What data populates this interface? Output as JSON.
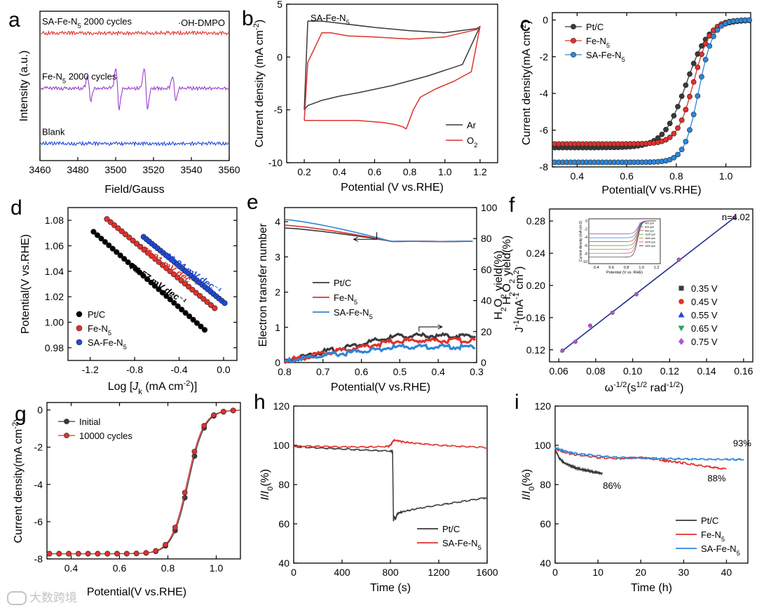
{
  "watermark": "大数跨境",
  "colors": {
    "black": "#3a3a3a",
    "red": "#e0312c",
    "blue": "#1f49d8",
    "purple": "#9b3dc9",
    "lightblue": "#2f86d6",
    "green": "#2ca25f",
    "violet": "#b44fd8"
  },
  "chart_data": [
    {
      "id": "a",
      "letter": "a",
      "type": "line",
      "xlabel": "Field/Gauss",
      "ylabel": "Intensity (a.u.)",
      "xlim": [
        3460,
        3560
      ],
      "xticks": [
        "3460",
        "3480",
        "3500",
        "3520",
        "3540",
        "3560"
      ],
      "annotation": "·OH-DMPO",
      "series": [
        {
          "name": "SA-Fe-N5 2000 cycles",
          "label_main": "SA-Fe-N",
          "label_sub": "5",
          "label_tail": " 2000 cycles",
          "color": "#e0312c",
          "baseline": 0.86,
          "peaks": []
        },
        {
          "name": "Fe-N5 2000 cycles",
          "label_main": "Fe-N",
          "label_sub": "5",
          "label_tail": " 2000 cycles",
          "color": "#9b3dc9",
          "baseline": 0.49,
          "peaks": [
            3486,
            3501,
            3516,
            3531
          ],
          "peak_amp": [
            0.6,
            1.0,
            1.0,
            0.6
          ]
        },
        {
          "name": "Blank",
          "label_main": "Blank",
          "label_sub": "",
          "label_tail": "",
          "color": "#1f49d8",
          "baseline": 0.12,
          "peaks": []
        }
      ]
    },
    {
      "id": "b",
      "letter": "b",
      "type": "line",
      "title": "SA-Fe-N5",
      "title_main": "SA-Fe-N",
      "title_sub": "5",
      "xlabel": "Potential (V vs.RHE)",
      "ylabel": "Current density (mA cm-2)",
      "xlim": [
        0.1,
        1.3
      ],
      "ylim": [
        -10,
        5
      ],
      "xticks": [
        "0.2",
        "0.4",
        "0.6",
        "0.8",
        "1.0",
        "1.2"
      ],
      "yticks": [
        "-10",
        "-5",
        "0",
        "5"
      ],
      "series": [
        {
          "name": "Ar",
          "color": "#3a3a3a",
          "x": [
            0.2,
            0.22,
            0.3,
            0.4,
            0.5,
            0.7,
            0.9,
            1.1,
            1.2,
            1.18,
            1.0,
            0.8,
            0.6,
            0.4,
            0.3,
            0.22,
            0.2
          ],
          "y": [
            -5.0,
            -4.6,
            -4.1,
            -3.7,
            -3.4,
            -2.7,
            -1.8,
            -0.7,
            2.9,
            2.7,
            2.3,
            2.5,
            2.8,
            3.2,
            3.4,
            3.4,
            -5.0
          ]
        },
        {
          "name": "O2",
          "color": "#e0312c",
          "x": [
            0.2,
            0.3,
            0.5,
            0.65,
            0.72,
            0.76,
            0.78,
            0.82,
            0.86,
            0.95,
            1.05,
            1.15,
            1.2,
            1.18,
            1.0,
            0.8,
            0.6,
            0.45,
            0.35,
            0.3,
            0.22,
            0.2
          ],
          "y": [
            -6.0,
            -6.0,
            -6.0,
            -6.2,
            -6.4,
            -6.6,
            -6.8,
            -5.0,
            -3.8,
            -3.0,
            -2.3,
            -1.4,
            2.9,
            2.6,
            1.9,
            1.7,
            1.9,
            2.0,
            2.3,
            2.3,
            -0.5,
            -6.0
          ]
        }
      ]
    },
    {
      "id": "c",
      "letter": "c",
      "type": "line",
      "xlabel": "Potential(V vs.RHE)",
      "ylabel": "Current density(mA cm-2)",
      "xlim": [
        0.3,
        1.1
      ],
      "ylim": [
        -8,
        0.4
      ],
      "xticks": [
        "0.4",
        "0.6",
        "0.8",
        "1.0"
      ],
      "yticks": [
        "-8",
        "-6",
        "-4",
        "-2",
        "0"
      ],
      "series": [
        {
          "name": "Pt/C",
          "color": "#3a3a3a",
          "limit": -6.95,
          "half": 0.84,
          "k": 22
        },
        {
          "name": "Fe-N5",
          "color": "#e0312c",
          "limit": -6.75,
          "half": 0.87,
          "k": 30
        },
        {
          "name": "SA-Fe-N5",
          "color": "#2f86d6",
          "limit": -7.75,
          "half": 0.89,
          "k": 34
        }
      ]
    },
    {
      "id": "d",
      "letter": "d",
      "type": "scatter",
      "xlabel": "Log [Jk (mA cm-2)]",
      "ylabel": "Potential(V vs.RHE)",
      "xlim": [
        -1.4,
        0.12
      ],
      "ylim": [
        0.97,
        1.09
      ],
      "xticks": [
        "-1.2",
        "-0.8",
        "-0.4",
        "0.0"
      ],
      "yticks": [
        "0.98",
        "1.00",
        "1.02",
        "1.04",
        "1.06",
        "1.08"
      ],
      "series": [
        {
          "name": "Pt/C",
          "color": "#000000",
          "x0": -1.17,
          "y0": 1.071,
          "x1": -0.17,
          "y1": 0.994,
          "slope_label": "74.57 mV dec⁻¹"
        },
        {
          "name": "Fe-N5",
          "color": "#e0312c",
          "x0": -1.05,
          "y0": 1.081,
          "x1": -0.08,
          "y1": 1.011,
          "slope_label": "70.81 mV dec⁻¹"
        },
        {
          "name": "SA-Fe-N5",
          "color": "#1f49d8",
          "x0": -0.72,
          "y0": 1.067,
          "x1": 0.01,
          "y1": 1.015,
          "slope_label": "69.94 mV dec⁻¹"
        }
      ]
    },
    {
      "id": "e",
      "letter": "e",
      "type": "line",
      "xlabel": "Potential(V vs.RHE)",
      "ylabel": "Electron transfer number",
      "ylabel2": "H2O2 yield(%)",
      "xlim": [
        0.8,
        0.3
      ],
      "ylim": [
        0,
        4.4
      ],
      "ylim2": [
        0,
        100
      ],
      "xticks": [
        "0.8",
        "0.7",
        "0.6",
        "0.5",
        "0.4",
        "0.3"
      ],
      "yticks": [
        "0",
        "1",
        "2",
        "3",
        "4"
      ],
      "yticks2": [
        "0",
        "20",
        "40",
        "60",
        "80",
        "100"
      ],
      "series": [
        {
          "name": "Pt/C",
          "color": "#3a3a3a",
          "n_start": 3.82,
          "y_end": 18
        },
        {
          "name": "Fe-N5",
          "color": "#e0312c",
          "n_start": 3.9,
          "y_end": 15
        },
        {
          "name": "SA-Fe-N5",
          "color": "#2f86d6",
          "n_start": 4.06,
          "y_end": 11
        }
      ]
    },
    {
      "id": "f",
      "letter": "f",
      "type": "scatter",
      "xlabel": "ω-1/2(s1/2 rad-1/2)",
      "ylabel": "J-1(mA-1 cm2)",
      "xlim": [
        0.055,
        0.165
      ],
      "ylim": [
        0.105,
        0.295
      ],
      "xticks": [
        "0.06",
        "0.08",
        "0.10",
        "0.12",
        "0.14",
        "0.16"
      ],
      "yticks": [
        "0.12",
        "0.16",
        "0.20",
        "0.24",
        "0.28"
      ],
      "annotation": "n=4.02",
      "x": [
        0.062,
        0.069,
        0.077,
        0.089,
        0.102,
        0.125,
        0.155
      ],
      "y": [
        0.119,
        0.13,
        0.15,
        0.166,
        0.189,
        0.232,
        0.284
      ],
      "series": [
        {
          "name": "0.35 V",
          "color": "#3a3a3a",
          "marker": "square"
        },
        {
          "name": "0.45 V",
          "color": "#e0312c",
          "marker": "circle"
        },
        {
          "name": "0.55 V",
          "color": "#1f49d8",
          "marker": "triangle"
        },
        {
          "name": "0.65 V",
          "color": "#2ca25f",
          "marker": "tri-down"
        },
        {
          "name": "0.75 V",
          "color": "#b44fd8",
          "marker": "diamond"
        }
      ],
      "inset": {
        "xlabel": "Potential (V vs. RHE)",
        "ylabel": "Current density (mA cm-2)",
        "xticks": [
          "0.4",
          "0.6",
          "0.8",
          "1.0",
          "1.2"
        ],
        "yticks": [
          "0",
          "-2",
          "-4",
          "-6",
          "-8",
          "-10"
        ],
        "legend": [
          "400 rpm",
          "625 rpm",
          "900 rpm",
          "1225 rpm",
          "1600 rpm",
          "2025 rpm",
          "2500 rpm"
        ]
      }
    },
    {
      "id": "g",
      "letter": "g",
      "type": "line",
      "xlabel": "Potential(V vs.RHE)",
      "ylabel": "Current density(mA cm-2)",
      "xlim": [
        0.3,
        1.1
      ],
      "ylim": [
        -8,
        0.4
      ],
      "xticks": [
        "0.4",
        "0.6",
        "0.8",
        "1.0"
      ],
      "yticks": [
        "-8",
        "-6",
        "-4",
        "-2",
        "0"
      ],
      "series": [
        {
          "name": "Initial",
          "color": "#3a3a3a",
          "limit": -7.72,
          "half": 0.885,
          "k": 30
        },
        {
          "name": "10000 cycles",
          "color": "#e0312c",
          "limit": -7.72,
          "half": 0.88,
          "k": 30
        }
      ]
    },
    {
      "id": "h",
      "letter": "h",
      "type": "line",
      "xlabel": "Time (s)",
      "ylabel": "I/I0(%)",
      "xlim": [
        0,
        1600
      ],
      "ylim": [
        40,
        120
      ],
      "xticks": [
        "0",
        "400",
        "800",
        "1200",
        "1600"
      ],
      "yticks": [
        "40",
        "60",
        "80",
        "100",
        "120"
      ],
      "series": [
        {
          "name": "Pt/C",
          "color": "#3a3a3a",
          "x": [
            0,
            200,
            400,
            600,
            800,
            818,
            825,
            832,
            840,
            860,
            900,
            1000,
            1200,
            1400,
            1600
          ],
          "y": [
            99.5,
            98.9,
            98.3,
            97.7,
            97.2,
            97.0,
            61.5,
            64.0,
            62.5,
            65.5,
            66.3,
            67.7,
            69.8,
            71.6,
            73.5
          ]
        },
        {
          "name": "SA-Fe-N5",
          "color": "#e0312c",
          "x": [
            0,
            200,
            400,
            600,
            780,
            800,
            820,
            835,
            900,
            1000,
            1200,
            1400,
            1600
          ],
          "y": [
            99.8,
            99.6,
            99.4,
            99.3,
            99.6,
            100.2,
            102.2,
            102.8,
            102.0,
            101.2,
            100.2,
            99.6,
            99.0
          ]
        }
      ]
    },
    {
      "id": "i",
      "letter": "i",
      "type": "line",
      "xlabel": "Time (h)",
      "ylabel": "I/I0(%)",
      "xlim": [
        0,
        45
      ],
      "ylim": [
        40,
        120
      ],
      "xticks": [
        "0",
        "10",
        "20",
        "30",
        "40"
      ],
      "yticks": [
        "40",
        "60",
        "80",
        "100",
        "120"
      ],
      "series": [
        {
          "name": "Pt/C",
          "color": "#3a3a3a",
          "x": [
            0,
            0.5,
            1,
            2,
            3,
            4,
            5,
            6,
            7,
            8,
            9,
            10,
            11
          ],
          "y": [
            97.5,
            96,
            93.5,
            91.5,
            90.3,
            89.5,
            88.6,
            88.0,
            87.5,
            87.1,
            86.6,
            86.2,
            85.8
          ],
          "end_label": "86%"
        },
        {
          "name": "Fe-N5",
          "color": "#e0312c",
          "x": [
            0,
            2,
            5,
            10,
            15,
            20,
            25,
            27,
            30,
            35,
            40
          ],
          "y": [
            98.5,
            96.8,
            95.4,
            94.0,
            93.5,
            94.0,
            92.7,
            92.0,
            91.2,
            89.5,
            88.0
          ],
          "end_label": "88%"
        },
        {
          "name": "SA-Fe-N5",
          "color": "#2f86d6",
          "x": [
            0,
            2,
            5,
            10,
            15,
            20,
            25,
            30,
            35,
            40,
            44
          ],
          "y": [
            98.8,
            97.3,
            96.0,
            94.8,
            94.0,
            93.8,
            93.4,
            93.2,
            93.1,
            93.0,
            93.0
          ],
          "end_label": "93%"
        }
      ]
    }
  ]
}
